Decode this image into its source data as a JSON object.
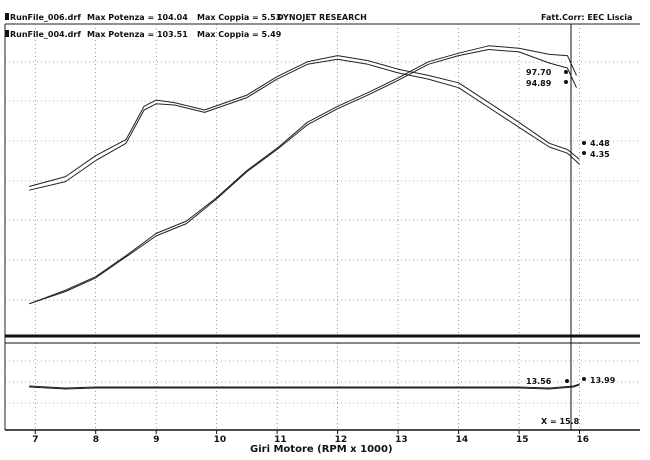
{
  "header": {
    "run1": "RunFile_006.drf",
    "run1_potenza": "Max Potenza = 104.04",
    "run1_coppia": "Max Coppia = 5.53",
    "run2": "RunFile_004.drf",
    "run2_potenza": "Max Potenza = 103.51",
    "run2_coppia": "Max Coppia = 5.49",
    "title": "DYNOJET RESEARCH",
    "correction": "Fatt.Corr: EEC  Liscia"
  },
  "chart_data": {
    "type": "line",
    "xlabel": "Giri Motore (RPM x 1000)",
    "xlim": [
      6.5,
      17
    ],
    "x_ticks": [
      "7",
      "8",
      "9",
      "10",
      "11",
      "12",
      "13",
      "14",
      "15",
      "16"
    ],
    "cursor_label": "X = 15.8",
    "cursor_x": 15.8,
    "top_panel": {
      "annotations": [
        "97.70",
        "94.89",
        "4.48",
        "4.35"
      ],
      "series": [
        {
          "role": "power-run-006",
          "x": [
            6.9,
            7.5,
            8.0,
            8.5,
            9.0,
            9.5,
            10.0,
            10.5,
            11.0,
            11.5,
            12.0,
            12.5,
            13.0,
            13.5,
            14.0,
            14.5,
            15.0,
            15.5,
            15.8,
            15.95
          ],
          "y": [
            5,
            16,
            27,
            44,
            62,
            72,
            91,
            113,
            131,
            152,
            165,
            176,
            188,
            201,
            208,
            214,
            212,
            207,
            206,
            190
          ]
        },
        {
          "role": "power-run-004",
          "x": [
            6.9,
            7.5,
            8.0,
            8.5,
            9.0,
            9.5,
            10.0,
            10.5,
            11.0,
            11.5,
            12.0,
            12.5,
            13.0,
            13.5,
            14.0,
            14.5,
            15.0,
            15.5,
            15.8,
            15.95
          ],
          "y": [
            5,
            15,
            26,
            43,
            60,
            70,
            90,
            112,
            130,
            150,
            163,
            174,
            186,
            199,
            206,
            211,
            209,
            200,
            196,
            180
          ]
        },
        {
          "role": "torque-run-006",
          "x": [
            6.9,
            7.5,
            8.0,
            8.5,
            8.8,
            9.0,
            9.3,
            9.8,
            10.5,
            11.0,
            11.5,
            12.0,
            12.5,
            13.0,
            13.5,
            14.0,
            14.5,
            15.0,
            15.5,
            15.8,
            16.0
          ],
          "y": [
            100,
            108,
            125,
            138,
            165,
            170,
            168,
            162,
            174,
            189,
            201,
            206,
            202,
            195,
            190,
            184,
            168,
            152,
            135,
            130,
            122
          ]
        },
        {
          "role": "torque-run-004",
          "x": [
            6.9,
            7.5,
            8.0,
            8.5,
            8.8,
            9.0,
            9.3,
            9.8,
            10.5,
            11.0,
            11.5,
            12.0,
            12.5,
            13.0,
            13.5,
            14.0,
            14.5,
            15.0,
            15.5,
            15.8,
            16.0
          ],
          "y": [
            97,
            104,
            121,
            135,
            162,
            167,
            166,
            160,
            172,
            187,
            199,
            203,
            199,
            192,
            187,
            180,
            164,
            148,
            132,
            127,
            118
          ]
        }
      ]
    },
    "bottom_panel": {
      "annotations": [
        "13.56",
        "13.99"
      ],
      "series": [
        {
          "role": "afr-run-006",
          "x": [
            6.9,
            7.5,
            8.0,
            9.0,
            10.0,
            11.0,
            12.0,
            13.0,
            14.0,
            15.0,
            15.5,
            15.9,
            16.0
          ],
          "y": [
            40,
            38,
            39,
            39,
            39,
            39,
            39,
            39,
            39,
            39,
            38,
            40,
            42
          ]
        },
        {
          "role": "afr-run-004",
          "x": [
            6.9,
            7.5,
            8.0,
            9.0,
            10.0,
            11.0,
            12.0,
            13.0,
            14.0,
            15.0,
            15.5,
            15.9,
            16.0
          ],
          "y": [
            39,
            37,
            38,
            38,
            38,
            38,
            38,
            38,
            38,
            38,
            37,
            39,
            41
          ]
        }
      ]
    }
  }
}
